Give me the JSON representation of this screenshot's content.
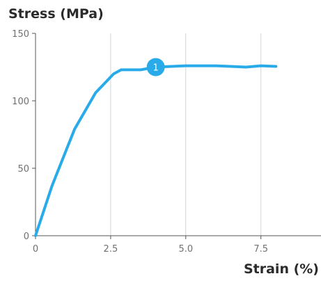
{
  "chart_data": {
    "type": "line",
    "ylabel": "Stress (MPa)",
    "xlabel": "Strain (%)",
    "xlim": [
      0,
      9.5
    ],
    "ylim": [
      0,
      150
    ],
    "x_ticks": [
      0,
      2.5,
      5.0,
      7.5
    ],
    "x_tick_labels": [
      "0",
      "2.5",
      "5.0",
      "7.5"
    ],
    "y_ticks": [
      0,
      50,
      100,
      150
    ],
    "y_tick_labels": [
      "0",
      "50",
      "100",
      "150"
    ],
    "grid": "vertical",
    "series": [
      {
        "color": "#29abe9",
        "x": [
          0,
          0.55,
          1.3,
          2.0,
          2.6,
          2.85,
          3.5,
          4.0,
          5.0,
          6.0,
          6.5,
          7.0,
          7.5,
          8.0
        ],
        "y": [
          0,
          37,
          79,
          106,
          120,
          123,
          123,
          125,
          126,
          126,
          125.5,
          125,
          126,
          125.5
        ]
      }
    ],
    "annotations": [
      {
        "label": "1",
        "x": 4.0,
        "y": 125,
        "color": "#29abe9"
      }
    ]
  }
}
